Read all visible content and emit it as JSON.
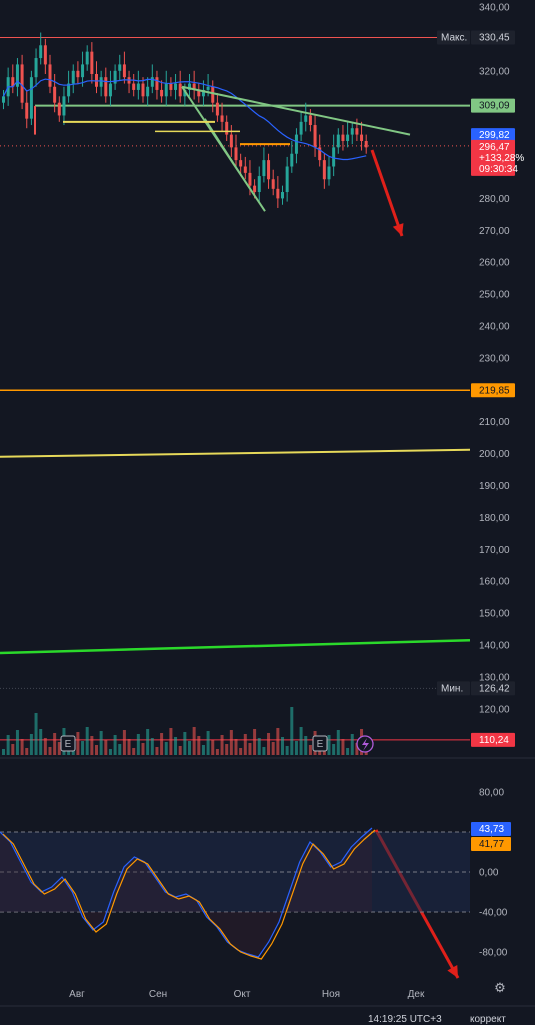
{
  "chart_data": [
    {
      "type": "candlestick",
      "title": "",
      "y_axis_ticks": [
        "340,00",
        "330,00",
        "320,00",
        "310,00",
        "300,00",
        "290,00",
        "280,00",
        "270,00",
        "260,00",
        "250,00",
        "240,00",
        "230,00",
        "220,00",
        "210,00",
        "200,00",
        "190,00",
        "180,00",
        "170,00",
        "160,00",
        "150,00",
        "140,00",
        "130,00",
        "120,00"
      ],
      "y_tick_values": [
        340,
        330,
        320,
        310,
        300,
        290,
        280,
        270,
        260,
        250,
        240,
        230,
        220,
        210,
        200,
        190,
        180,
        170,
        160,
        150,
        140,
        130,
        120
      ],
      "ylim": [
        113,
        341
      ],
      "x_axis_ticks": [
        "Авг",
        "Сен",
        "Окт",
        "Ноя",
        "Дек"
      ],
      "price_labels": [
        {
          "prefix": "Макс.",
          "value": "330,45",
          "price": 330.45,
          "color": "#ef5350"
        },
        {
          "value": "309,09",
          "price": 309.09,
          "color": "#81c784"
        },
        {
          "value": "299,82",
          "price": 299.82,
          "color": "#2962ff"
        },
        {
          "value": "296,47",
          "price": 296.47,
          "color": "#f23645",
          "change": "+133,28%",
          "countdown": "09:30:34"
        },
        {
          "value": "219,85",
          "price": 219.85,
          "color": "#ff9800"
        },
        {
          "prefix": "Мин.",
          "value": "126,42",
          "price": 126.42,
          "color": "#1e222d"
        },
        {
          "value": "110,24",
          "price": 110.24,
          "color": "#f23645"
        }
      ],
      "close_series": [
        312,
        318,
        315,
        322,
        310,
        305,
        318,
        324,
        328,
        322,
        315,
        310,
        306,
        312,
        316,
        320,
        318,
        322,
        326,
        319,
        315,
        318,
        312,
        316,
        320,
        322,
        318,
        316,
        314,
        316,
        312,
        315,
        318,
        314,
        312,
        316,
        314,
        316,
        312,
        314,
        316,
        314,
        312,
        314,
        315,
        310,
        306,
        304,
        300,
        296,
        292,
        290,
        288,
        284,
        282,
        287,
        292,
        286,
        283,
        280,
        282,
        290,
        294,
        300,
        304,
        306,
        303,
        296,
        292,
        286,
        290,
        296,
        300,
        298,
        300,
        302,
        300,
        298,
        296
      ]
    },
    {
      "type": "line",
      "y_axis_ticks": [
        "80,00",
        "40,00",
        "0,00",
        "-40,00",
        "-80,00"
      ],
      "y_tick_values": [
        80,
        40,
        0,
        -40,
        -80
      ],
      "ylim": [
        -100,
        100
      ],
      "levels": [
        40,
        0,
        -40
      ],
      "labels": [
        {
          "value": "43,73",
          "color": "#2962ff"
        },
        {
          "value": "41,77",
          "color": "#ff9800"
        }
      ]
    }
  ],
  "annotations": {
    "e_marker": "E"
  },
  "bottom_bar": {
    "clock": "14:19:25 UTC+3",
    "correction": "коррект"
  },
  "colors": {
    "bg": "#131722",
    "up": "#26a69a",
    "down": "#ef5350",
    "resistance": "#81c784",
    "arrow": "#e0201a"
  },
  "icons": [
    "lightning-icon",
    "settings-gear-icon"
  ]
}
